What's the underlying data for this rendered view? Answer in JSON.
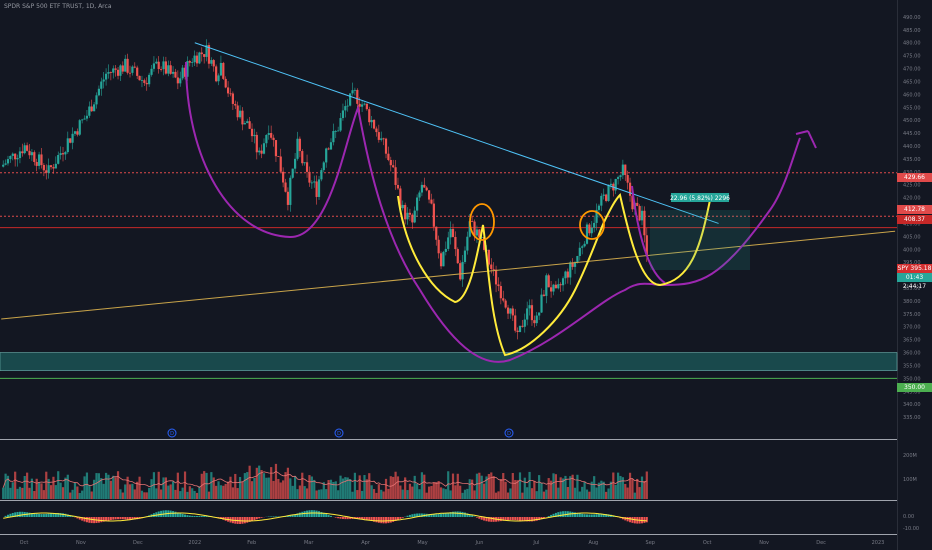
{
  "header": {
    "title": "SPDR S&P 500 ETF TRUST, 1D, Arca"
  },
  "price_tags": [
    {
      "label": "429.66",
      "color": "#e04a4a"
    },
    {
      "label": "412.78",
      "color": "#e04a4a"
    },
    {
      "label": "408.37",
      "color": "#c62828"
    },
    {
      "label": "SPY   395.18",
      "color": "#d32f2f"
    },
    {
      "label": "01:43   2:44:17",
      "color": "#26a69a"
    },
    {
      "label": "350.00",
      "color": "#4caf50"
    }
  ],
  "measure_label": "22.96 (5.82%) 2296",
  "markers": [
    "D",
    "D",
    "D"
  ],
  "volume_axis": [
    "200M",
    "100M"
  ],
  "indicator_axis": [
    "0.00",
    "-10.00"
  ],
  "chart_data": {
    "type": "candlestick",
    "title": "SPDR S&P 500 ETF TRUST, 1D, Arca",
    "ylim": [
      330,
      495
    ],
    "y_ticks": [
      490,
      485,
      480,
      475,
      470,
      465,
      460,
      455,
      450,
      445,
      440,
      435,
      430,
      425,
      420,
      415,
      410,
      405,
      400,
      395,
      390,
      385,
      380,
      375,
      370,
      365,
      360,
      355,
      350,
      345,
      340,
      335
    ],
    "x_ticks": [
      "Oct",
      "Nov",
      "Dec",
      "2022",
      "Feb",
      "Mar",
      "Apr",
      "May",
      "Jun",
      "Jul",
      "Aug",
      "Sep",
      "Oct",
      "Nov",
      "Dec",
      "2023"
    ],
    "price_path": [
      [
        0,
        432
      ],
      [
        5,
        440
      ],
      [
        10,
        430
      ],
      [
        14,
        442
      ],
      [
        18,
        452
      ],
      [
        22,
        468
      ],
      [
        26,
        471
      ],
      [
        30,
        465
      ],
      [
        33,
        472
      ],
      [
        37,
        465
      ],
      [
        40,
        474
      ],
      [
        43,
        477
      ],
      [
        45,
        468
      ],
      [
        46,
        472
      ],
      [
        48,
        458
      ],
      [
        50,
        452
      ],
      [
        52,
        447
      ],
      [
        54,
        436
      ],
      [
        56,
        448
      ],
      [
        58,
        435
      ],
      [
        60,
        420
      ],
      [
        62,
        440
      ],
      [
        64,
        428
      ],
      [
        66,
        423
      ],
      [
        68,
        440
      ],
      [
        70,
        445
      ],
      [
        72,
        455
      ],
      [
        74,
        460
      ],
      [
        76,
        455
      ],
      [
        78,
        448
      ],
      [
        80,
        440
      ],
      [
        82,
        430
      ],
      [
        84,
        415
      ],
      [
        86,
        410
      ],
      [
        88,
        425
      ],
      [
        90,
        415
      ],
      [
        92,
        395
      ],
      [
        94,
        408
      ],
      [
        96,
        390
      ],
      [
        98,
        410
      ],
      [
        100,
        405
      ],
      [
        103,
        390
      ],
      [
        106,
        378
      ],
      [
        108,
        365
      ],
      [
        110,
        378
      ],
      [
        112,
        372
      ],
      [
        114,
        388
      ],
      [
        116,
        382
      ],
      [
        118,
        390
      ],
      [
        120,
        395
      ],
      [
        122,
        405
      ],
      [
        124,
        412
      ],
      [
        126,
        420
      ],
      [
        128,
        425
      ],
      [
        130,
        430
      ],
      [
        132,
        418
      ],
      [
        134,
        412
      ],
      [
        135,
        397
      ]
    ],
    "levels": [
      {
        "value": 429.66,
        "style": "dotted",
        "color": "#e04a4a"
      },
      {
        "value": 412.78,
        "style": "dotted",
        "color": "#e04a4a"
      },
      {
        "value": 408.37,
        "style": "solid",
        "color": "#c62828"
      },
      {
        "value": 350.0,
        "style": "solid",
        "color": "#4caf50"
      }
    ],
    "zone": [
      353,
      360
    ],
    "trendlines": [
      {
        "from": [
          "2022",
          480
        ],
        "to": [
          "Oct",
          410
        ],
        "color": "#4fc3f7"
      },
      {
        "from": [
          "Oct",
          373
        ],
        "to": [
          "2023",
          407
        ],
        "color": "#c9a44a"
      }
    ]
  }
}
